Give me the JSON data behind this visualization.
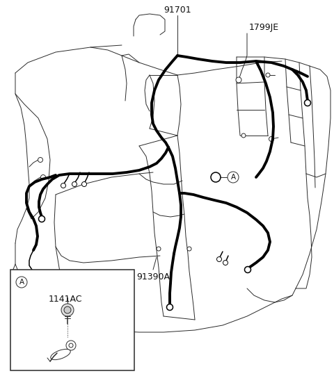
{
  "bg_color": "#ffffff",
  "line_color": "#2a2a2a",
  "thick_color": "#000000",
  "label_91701": "91701",
  "label_1799JE": "1799JE",
  "label_91390A": "91390A",
  "label_1141AC": "1141AC",
  "label_A": "A",
  "figsize": [
    4.8,
    5.41
  ],
  "dpi": 100,
  "lw_thin": 0.7,
  "lw_med": 1.1,
  "lw_thick": 2.8
}
